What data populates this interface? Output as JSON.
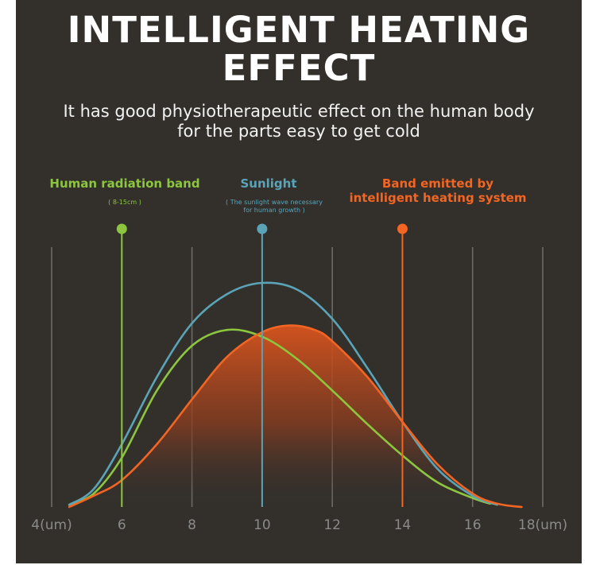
{
  "header": {
    "title_line1": "INTELLIGENT HEATING",
    "title_line2": "EFFECT",
    "subtitle_line1": "It has good physiotherapeutic effect on the human body",
    "subtitle_line2": "for the parts easy to get cold"
  },
  "chart_data": {
    "type": "line",
    "x_ticks": [
      "4(um)",
      "6",
      "8",
      "10",
      "12",
      "14",
      "16",
      "18(um)"
    ],
    "x_tick_values": [
      4,
      6,
      8,
      10,
      12,
      14,
      16,
      18
    ],
    "xlim": [
      4,
      18
    ],
    "grid": "vertical",
    "series": [
      {
        "name": "Human radiation band",
        "note": "( 8-15cm )",
        "color": "#8cc63f",
        "marker_x": 6,
        "points": [
          [
            4.5,
            0.01
          ],
          [
            5.2,
            0.06
          ],
          [
            6,
            0.22
          ],
          [
            7,
            0.52
          ],
          [
            8,
            0.72
          ],
          [
            9,
            0.79
          ],
          [
            10,
            0.76
          ],
          [
            11,
            0.66
          ],
          [
            12,
            0.52
          ],
          [
            13,
            0.37
          ],
          [
            14,
            0.23
          ],
          [
            15,
            0.11
          ],
          [
            16,
            0.04
          ],
          [
            16.5,
            0.015
          ]
        ]
      },
      {
        "name": "Sunlight",
        "note_line1": "( The sunlight wave necessary",
        "note_line2": "for human growth )",
        "color": "#5ba4b8",
        "marker_x": 10,
        "points": [
          [
            4.5,
            0.01
          ],
          [
            5.2,
            0.08
          ],
          [
            6,
            0.28
          ],
          [
            7,
            0.58
          ],
          [
            8,
            0.82
          ],
          [
            9,
            0.95
          ],
          [
            10,
            1.0
          ],
          [
            11,
            0.97
          ],
          [
            12,
            0.84
          ],
          [
            13,
            0.62
          ],
          [
            14,
            0.38
          ],
          [
            15,
            0.17
          ],
          [
            16,
            0.05
          ],
          [
            16.7,
            0.01
          ]
        ]
      },
      {
        "name_line1": "Band emitted by",
        "name_line2": "intelligent heating system",
        "color": "#f26522",
        "marker_x": 14,
        "filled": true,
        "points": [
          [
            4.5,
            0.0
          ],
          [
            5.2,
            0.05
          ],
          [
            6,
            0.12
          ],
          [
            7,
            0.28
          ],
          [
            8,
            0.48
          ],
          [
            9,
            0.67
          ],
          [
            10,
            0.78
          ],
          [
            10.8,
            0.81
          ],
          [
            11.5,
            0.79
          ],
          [
            12,
            0.74
          ],
          [
            13,
            0.58
          ],
          [
            14,
            0.38
          ],
          [
            15,
            0.19
          ],
          [
            16,
            0.06
          ],
          [
            16.7,
            0.015
          ],
          [
            17.4,
            0.0
          ]
        ]
      }
    ]
  }
}
